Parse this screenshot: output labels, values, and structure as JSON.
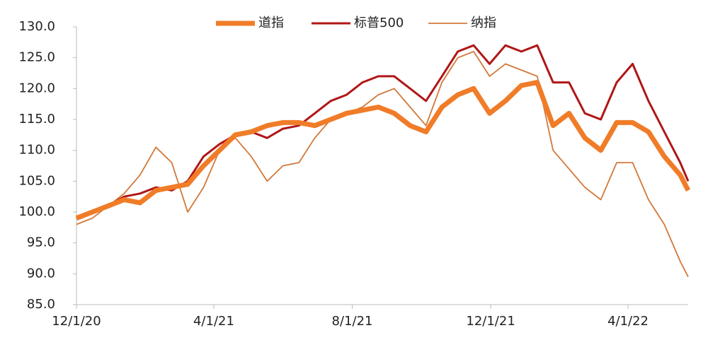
{
  "chart_data": {
    "type": "line",
    "x": [
      "2020-12-01",
      "2020-12-15",
      "2020-12-29",
      "2021-01-12",
      "2021-01-26",
      "2021-02-09",
      "2021-02-23",
      "2021-03-09",
      "2021-03-23",
      "2021-04-06",
      "2021-04-20",
      "2021-05-04",
      "2021-05-18",
      "2021-06-01",
      "2021-06-15",
      "2021-06-29",
      "2021-07-13",
      "2021-07-27",
      "2021-08-10",
      "2021-08-24",
      "2021-09-07",
      "2021-09-21",
      "2021-10-05",
      "2021-10-19",
      "2021-11-02",
      "2021-11-16",
      "2021-11-30",
      "2021-12-14",
      "2021-12-28",
      "2022-01-11",
      "2022-01-25",
      "2022-02-08",
      "2022-02-22",
      "2022-03-08",
      "2022-03-22",
      "2022-04-05",
      "2022-04-19",
      "2022-05-03",
      "2022-05-17",
      "2022-05-24"
    ],
    "series": [
      {
        "name": "道指",
        "color": "#f07c28",
        "width": 7,
        "values": [
          99,
          100,
          101,
          102,
          101.5,
          103.5,
          104,
          104.5,
          107.5,
          110,
          112.5,
          113,
          114,
          114.5,
          114.5,
          114,
          115,
          116,
          116.5,
          117,
          116,
          114,
          113,
          117,
          119,
          120,
          116,
          118,
          120.5,
          121,
          114,
          116,
          112,
          110,
          114.5,
          114.5,
          113,
          109,
          106,
          103.5
        ]
      },
      {
        "name": "标普500",
        "color": "#b01616",
        "width": 3,
        "values": [
          99,
          100,
          101,
          102.5,
          103,
          104,
          103.5,
          105,
          109,
          111,
          112.5,
          113,
          112,
          113.5,
          114,
          116,
          118,
          119,
          121,
          122,
          122,
          120,
          118,
          122,
          126,
          127,
          124,
          127,
          126,
          127,
          121,
          121,
          116,
          115,
          121,
          124,
          118,
          113,
          108,
          105
        ]
      },
      {
        "name": "纳指",
        "color": "#d2783a",
        "width": 1.8,
        "values": [
          98,
          99,
          101,
          103,
          106,
          110.5,
          108,
          100,
          104,
          110,
          112,
          109,
          105,
          107.5,
          108,
          112,
          115,
          116,
          117,
          119,
          120,
          117,
          114,
          121,
          125,
          126,
          122,
          124,
          123,
          122,
          110,
          107,
          104,
          102,
          108,
          108,
          102,
          98,
          92,
          89.5
        ]
      }
    ],
    "xlim": [
      "2020-12-01",
      "2022-05-24"
    ],
    "xticks": [
      {
        "value": "2020-12-01",
        "label": "12/1/20"
      },
      {
        "value": "2021-04-01",
        "label": "4/1/21"
      },
      {
        "value": "2021-08-01",
        "label": "8/1/21"
      },
      {
        "value": "2021-12-01",
        "label": "12/1/21"
      },
      {
        "value": "2022-04-01",
        "label": "4/1/22"
      }
    ],
    "ylim": [
      85,
      130
    ],
    "yticks": [
      {
        "value": 85,
        "label": "85.0"
      },
      {
        "value": 90,
        "label": "90.0"
      },
      {
        "value": 95,
        "label": "95.0"
      },
      {
        "value": 100,
        "label": "100.0"
      },
      {
        "value": 105,
        "label": "105.0"
      },
      {
        "value": 110,
        "label": "110.0"
      },
      {
        "value": 115,
        "label": "115.0"
      },
      {
        "value": 120,
        "label": "120.0"
      },
      {
        "value": 125,
        "label": "125.0"
      },
      {
        "value": 130,
        "label": "130.0"
      }
    ]
  }
}
